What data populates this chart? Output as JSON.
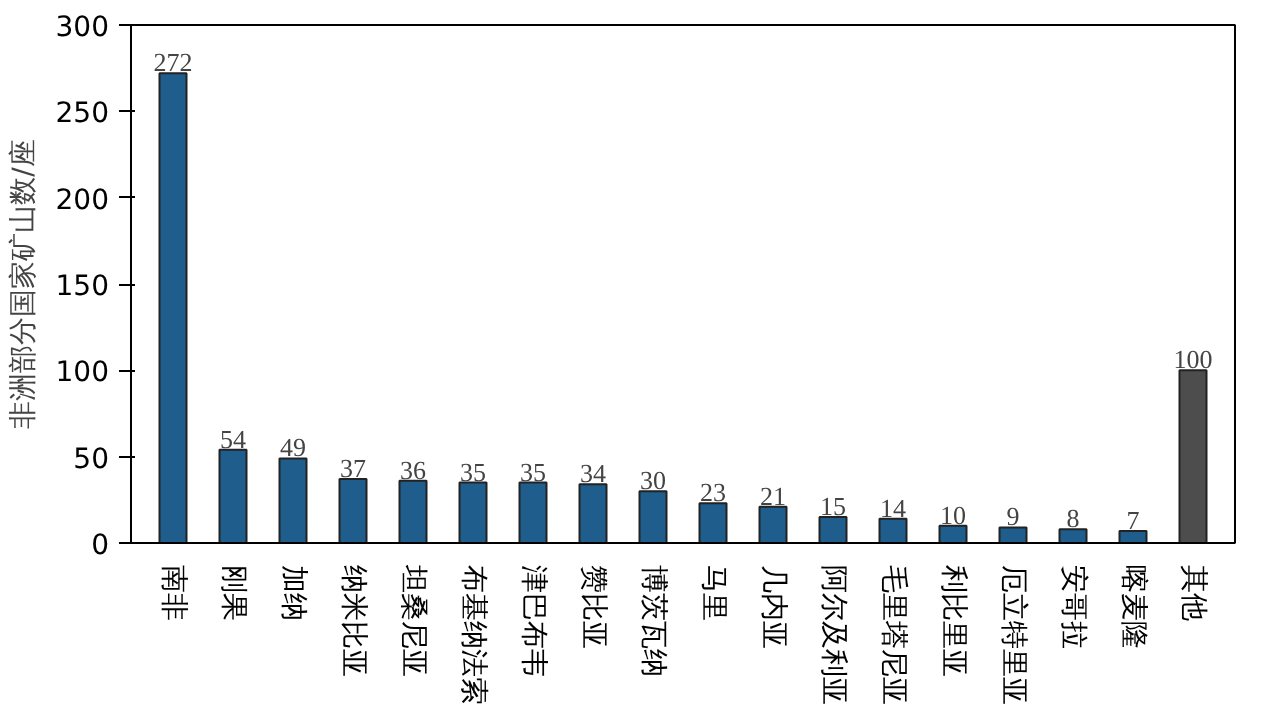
{
  "chart_data": {
    "type": "bar",
    "ylabel": "非洲部分国家矿山数/座",
    "categories": [
      "南非",
      "刚果",
      "加纳",
      "纳米比亚",
      "坦桑尼亚",
      "布基纳法索",
      "津巴布韦",
      "赞比亚",
      "博茨瓦纳",
      "马里",
      "几内亚",
      "阿尔及利亚",
      "毛里塔尼亚",
      "利比里亚",
      "厄立特里亚",
      "安哥拉",
      "喀麦隆",
      "其他"
    ],
    "values": [
      272,
      54,
      49,
      37,
      36,
      35,
      35,
      34,
      30,
      23,
      21,
      15,
      14,
      10,
      9,
      8,
      7,
      100
    ],
    "colors": [
      "#1f5d8c",
      "#1f5d8c",
      "#1f5d8c",
      "#1f5d8c",
      "#1f5d8c",
      "#1f5d8c",
      "#1f5d8c",
      "#1f5d8c",
      "#1f5d8c",
      "#1f5d8c",
      "#1f5d8c",
      "#1f5d8c",
      "#1f5d8c",
      "#1f5d8c",
      "#1f5d8c",
      "#1f5d8c",
      "#1f5d8c",
      "#4d4d4d"
    ],
    "ylim": [
      0,
      300
    ],
    "yticks": [
      0,
      50,
      100,
      150,
      200,
      250,
      300
    ],
    "data_labels": true,
    "grid": false
  }
}
